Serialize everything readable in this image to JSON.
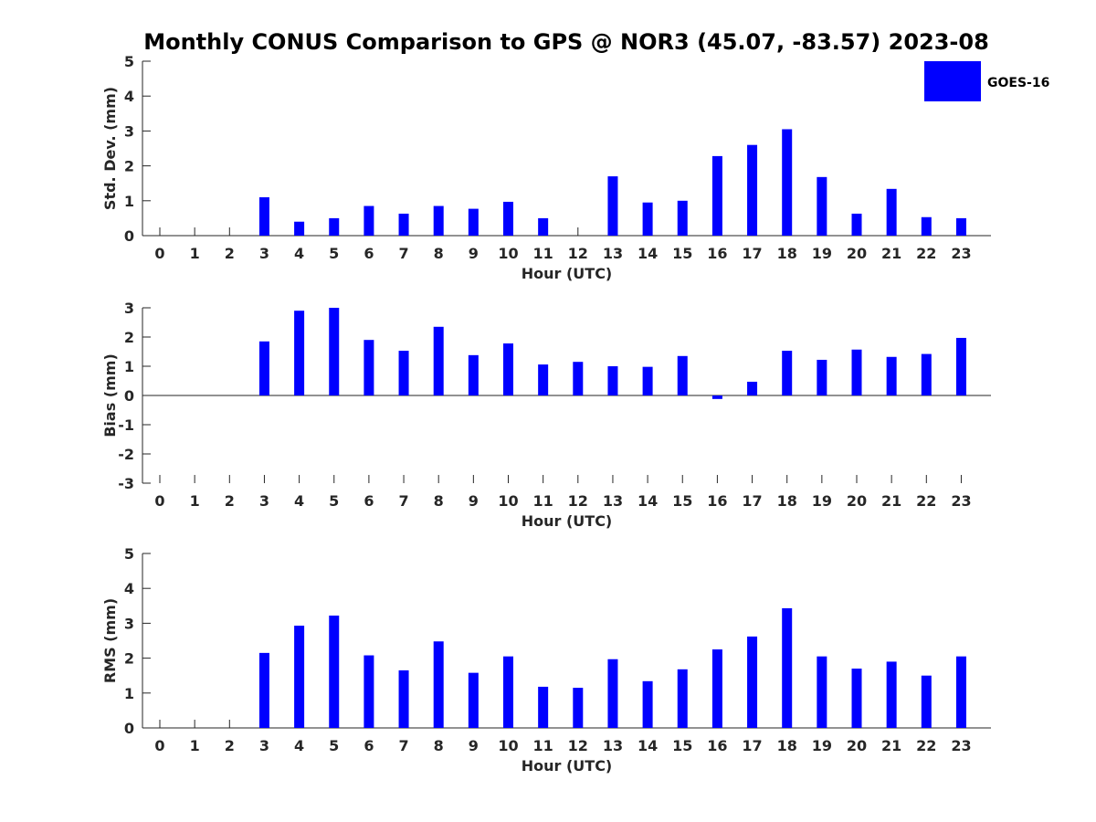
{
  "title": "Monthly CONUS Comparison to GPS @ NOR3 (45.07, -83.57) 2023-08",
  "legend": {
    "label": "GOES-16",
    "color": "#0000ff"
  },
  "chart_data": [
    {
      "type": "bar",
      "panel": "std-dev",
      "ylabel": "Std. Dev. (mm)",
      "xlabel": "Hour (UTC)",
      "ylim": [
        0,
        5
      ],
      "yticks": [
        "0",
        "1",
        "2",
        "3",
        "4",
        "5"
      ],
      "categories": [
        "0",
        "1",
        "2",
        "3",
        "4",
        "5",
        "6",
        "7",
        "8",
        "9",
        "10",
        "11",
        "12",
        "13",
        "14",
        "15",
        "16",
        "17",
        "18",
        "19",
        "20",
        "21",
        "22",
        "23"
      ],
      "series": [
        {
          "name": "GOES-16",
          "values": [
            null,
            null,
            null,
            1.1,
            0.4,
            0.5,
            0.85,
            0.63,
            0.85,
            0.77,
            0.97,
            0.5,
            null,
            1.7,
            0.95,
            1.0,
            2.28,
            2.6,
            3.05,
            1.68,
            0.63,
            1.34,
            0.53,
            0.5
          ]
        }
      ]
    },
    {
      "type": "bar",
      "panel": "bias",
      "ylabel": "Bias (mm)",
      "xlabel": "Hour (UTC)",
      "ylim": [
        -3,
        3
      ],
      "yticks": [
        "-3",
        "-2",
        "-1",
        "0",
        "1",
        "2",
        "3"
      ],
      "categories": [
        "0",
        "1",
        "2",
        "3",
        "4",
        "5",
        "6",
        "7",
        "8",
        "9",
        "10",
        "11",
        "12",
        "13",
        "14",
        "15",
        "16",
        "17",
        "18",
        "19",
        "20",
        "21",
        "22",
        "23"
      ],
      "series": [
        {
          "name": "GOES-16",
          "values": [
            null,
            null,
            null,
            1.85,
            2.9,
            3.0,
            1.9,
            1.53,
            2.35,
            1.38,
            1.78,
            1.06,
            1.15,
            1.0,
            0.98,
            1.35,
            -0.12,
            0.47,
            1.53,
            1.22,
            1.57,
            1.32,
            1.42,
            1.97
          ]
        }
      ]
    },
    {
      "type": "bar",
      "panel": "rms",
      "ylabel": "RMS (mm)",
      "xlabel": "Hour (UTC)",
      "ylim": [
        0,
        5
      ],
      "yticks": [
        "0",
        "1",
        "2",
        "3",
        "4",
        "5"
      ],
      "categories": [
        "0",
        "1",
        "2",
        "3",
        "4",
        "5",
        "6",
        "7",
        "8",
        "9",
        "10",
        "11",
        "12",
        "13",
        "14",
        "15",
        "16",
        "17",
        "18",
        "19",
        "20",
        "21",
        "22",
        "23"
      ],
      "series": [
        {
          "name": "GOES-16",
          "values": [
            null,
            null,
            null,
            2.15,
            2.93,
            3.22,
            2.08,
            1.65,
            2.48,
            1.58,
            2.05,
            1.18,
            1.15,
            1.97,
            1.34,
            1.68,
            2.25,
            2.62,
            3.43,
            2.05,
            1.7,
            1.9,
            1.5,
            2.05
          ]
        }
      ]
    }
  ]
}
